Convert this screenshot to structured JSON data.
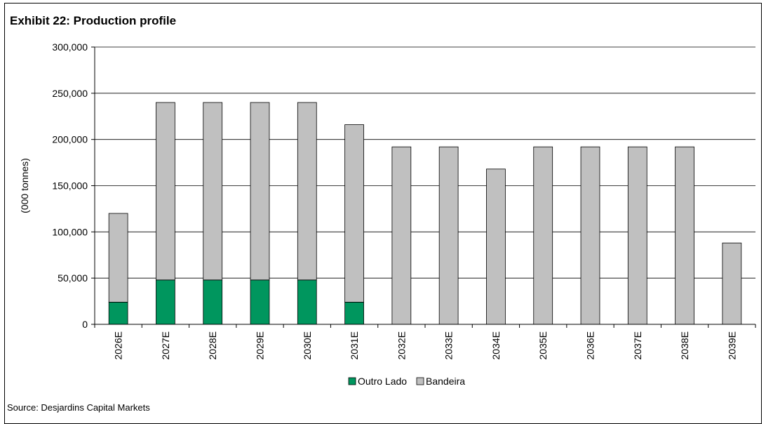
{
  "title": "Exhibit 22: Production profile",
  "source": "Source: Desjardins Capital Markets",
  "chart_data": {
    "type": "bar",
    "stacked": true,
    "title": "Exhibit 22: Production profile",
    "xlabel": "",
    "ylabel": "(000 tonnes)",
    "ylim": [
      0,
      300000
    ],
    "yticks": [
      0,
      50000,
      100000,
      150000,
      200000,
      250000,
      300000
    ],
    "ytick_labels": [
      "0",
      "50,000",
      "100,000",
      "150,000",
      "200,000",
      "250,000",
      "300,000"
    ],
    "grid": true,
    "legend_position": "bottom",
    "categories": [
      "2026E",
      "2027E",
      "2028E",
      "2029E",
      "2030E",
      "2031E",
      "2032E",
      "2033E",
      "2034E",
      "2035E",
      "2036E",
      "2037E",
      "2038E",
      "2039E"
    ],
    "series": [
      {
        "name": "Outro Lado",
        "color": "#00965E",
        "values": [
          24000,
          48000,
          48000,
          48000,
          48000,
          24000,
          0,
          0,
          0,
          0,
          0,
          0,
          0,
          0
        ]
      },
      {
        "name": "Bandeira",
        "color": "#C0C0C0",
        "values": [
          96000,
          192000,
          192000,
          192000,
          192000,
          192000,
          192000,
          192000,
          168000,
          192000,
          192000,
          192000,
          192000,
          88000
        ]
      }
    ]
  }
}
